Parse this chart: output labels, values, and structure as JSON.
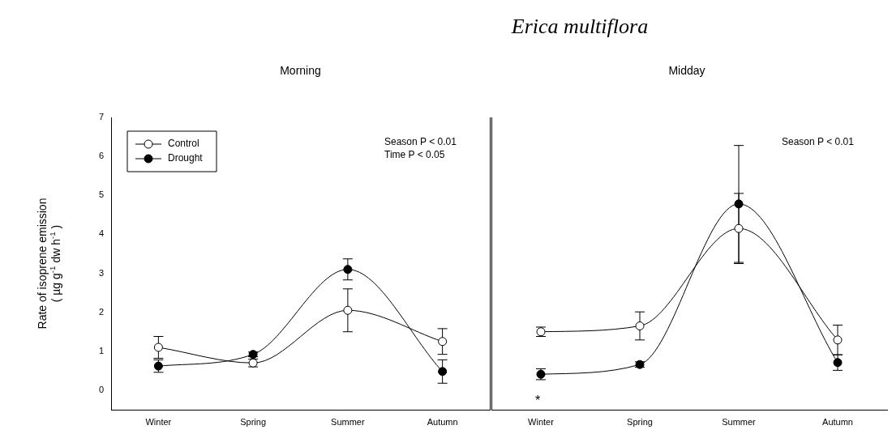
{
  "chart_data": [
    {
      "type": "line",
      "subtitle": "Morning",
      "ylabel": "Rate of isoprene emission ( µg g$^{-1}$ dw h$^{-1}$ )",
      "categories": [
        "Winter",
        "Spring",
        "Summer",
        "Autumn"
      ],
      "series": [
        {
          "name": "Control",
          "color": "#ffffff",
          "values": [
            1.1,
            0.7,
            2.05,
            1.25
          ],
          "errors": [
            0.28,
            0.1,
            0.55,
            0.33
          ]
        },
        {
          "name": "Drought",
          "color": "#000000",
          "values": [
            0.62,
            0.92,
            3.1,
            0.48
          ],
          "errors": [
            0.16,
            0.06,
            0.27,
            0.3
          ]
        }
      ],
      "ylim": [
        -0.5,
        7
      ],
      "yticks": [
        0,
        1,
        2,
        3,
        4,
        5,
        6,
        7
      ],
      "marker": "circle",
      "legend": "top left",
      "grid": false,
      "annotations": [
        "Season P < 0.01",
        "Time P < 0.05"
      ]
    },
    {
      "type": "line",
      "title": "Erica multiflora",
      "subtitle": "Midday",
      "categories": [
        "Winter",
        "Spring",
        "Summer",
        "Autumn"
      ],
      "series": [
        {
          "color": "#ffffff",
          "values": [
            1.5,
            1.65,
            4.15,
            1.29
          ],
          "errors": [
            0.12,
            0.36,
            0.9,
            0.38
          ]
        },
        {
          "color": "#000000",
          "values": [
            0.41,
            0.66,
            4.78,
            0.71
          ],
          "errors": [
            0.14,
            0.07,
            1.5,
            0.2
          ]
        }
      ],
      "ylim": [
        -0.5,
        7
      ],
      "yticks": [
        0,
        1,
        2,
        3,
        4,
        5,
        6,
        7
      ],
      "marker": "circle",
      "legend": false,
      "grid": false,
      "tick_labels": "x",
      "annotations": [
        "Season P < 0.01",
        "*"
      ]
    }
  ]
}
